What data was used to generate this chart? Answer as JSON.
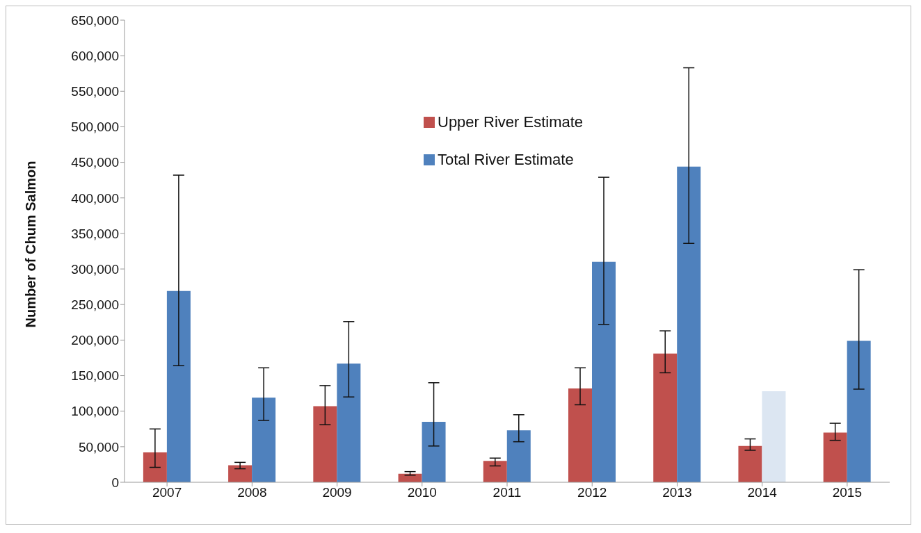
{
  "chart_data": {
    "type": "bar",
    "ylabel": "Number of Chum Salmon",
    "categories": [
      "2007",
      "2008",
      "2009",
      "2010",
      "2011",
      "2012",
      "2013",
      "2014",
      "2015"
    ],
    "series": [
      {
        "name": "Upper River Estimate",
        "color": "#c0504d",
        "values": [
          42000,
          24000,
          107000,
          12000,
          30000,
          132000,
          181000,
          51000,
          70000
        ],
        "errors": [
          [
            21000,
            75000
          ],
          [
            19000,
            28000
          ],
          [
            81000,
            136000
          ],
          [
            10000,
            15000
          ],
          [
            23000,
            34000
          ],
          [
            109000,
            161000
          ],
          [
            154000,
            213000
          ],
          [
            45000,
            61000
          ],
          [
            59000,
            83000
          ]
        ]
      },
      {
        "name": "Total River Estimate",
        "color": "#4f81bd",
        "colors": [
          "#4f81bd",
          "#4f81bd",
          "#4f81bd",
          "#4f81bd",
          "#4f81bd",
          "#4f81bd",
          "#4f81bd",
          "#dce6f2",
          "#4f81bd"
        ],
        "values": [
          269000,
          119000,
          167000,
          85000,
          73000,
          310000,
          444000,
          128000,
          199000
        ],
        "errors": [
          [
            164000,
            432000
          ],
          [
            87000,
            161000
          ],
          [
            120000,
            226000
          ],
          [
            51000,
            140000
          ],
          [
            57000,
            95000
          ],
          [
            222000,
            429000
          ],
          [
            336000,
            583000
          ],
          null,
          [
            131000,
            299000
          ]
        ]
      }
    ],
    "ylim": [
      0,
      650000
    ],
    "yticks": [
      0,
      {
        "value": 50000,
        "label": "50,000"
      },
      {
        "value": 100000,
        "label": "100,000"
      },
      {
        "value": 150000,
        "label": "150,000"
      },
      {
        "value": 200000,
        "label": "200,000"
      },
      {
        "value": 250000,
        "label": "250,000"
      },
      {
        "value": 300000,
        "label": "300,000"
      },
      {
        "value": 350000,
        "label": "350,000"
      },
      {
        "value": 400000,
        "label": "400,000"
      },
      {
        "value": 450000,
        "label": "450,000"
      },
      {
        "value": 500000,
        "label": "500,000"
      },
      {
        "value": 550000,
        "label": "550,000"
      },
      {
        "value": 600000,
        "label": "600,000"
      },
      {
        "value": 650000,
        "label": "650,000"
      }
    ],
    "grid": false,
    "legend": "top"
  }
}
